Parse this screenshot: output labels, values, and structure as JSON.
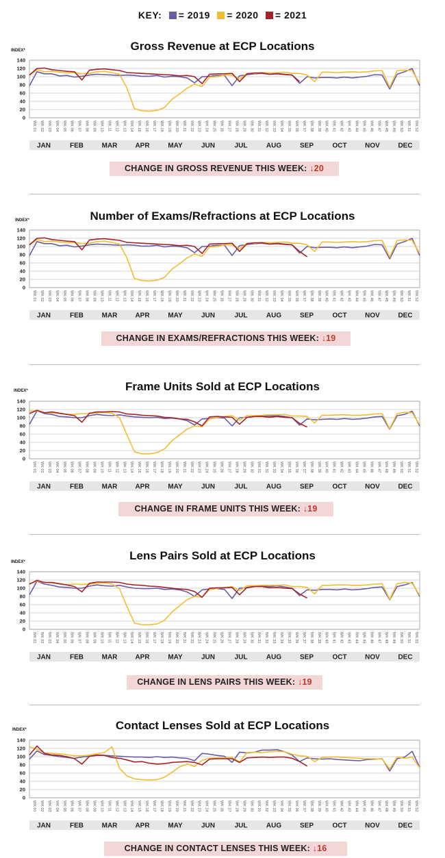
{
  "key": {
    "label": "KEY:",
    "items": [
      {
        "label": "= 2019",
        "color": "#6b5ba5"
      },
      {
        "label": "= 2020",
        "color": "#f2bd33"
      },
      {
        "label": "= 2021",
        "color": "#a3232b"
      }
    ]
  },
  "y_axis_label": "INDEX*",
  "y_ticks": [
    "0",
    "20",
    "40",
    "60",
    "80",
    "100",
    "120",
    "140"
  ],
  "months": [
    "JAN",
    "FEB",
    "MAR",
    "APR",
    "MAY",
    "JUN",
    "JUL",
    "AUG",
    "SEP",
    "OCT",
    "NOV",
    "DEC"
  ],
  "week_labels": [
    "WK 01",
    "WK 02",
    "WK 03",
    "WK 04",
    "WK 05",
    "WK 06",
    "WK 07",
    "WK 08",
    "WK 09",
    "WK 10",
    "WK 11",
    "WK 12",
    "WK 13",
    "WK 14",
    "WK 15",
    "WK 16",
    "WK 17",
    "WK 18",
    "WK 19",
    "WK 20",
    "WK 21",
    "WK 22",
    "WK 23",
    "WK 24",
    "WK 25",
    "WK 26",
    "WK 27",
    "WK 28",
    "WK 29",
    "WK 30",
    "WK 31",
    "WK 32",
    "WK 33",
    "WK 34",
    "WK 35",
    "WK 36",
    "WK 37",
    "WK 38",
    "WK 39",
    "WK 40",
    "WK 41",
    "WK 42",
    "WK 43",
    "WK 44",
    "WK 45",
    "WK 46",
    "WK 47",
    "WK 48",
    "WK 49",
    "WK 50",
    "WK 51",
    "WK 52"
  ],
  "colors": {
    "grid": "#c8c8c8",
    "band": "#e6e6e6",
    "change_bg": "#f3d6d6",
    "arrow": "#c0392b"
  },
  "chart_data": [
    {
      "type": "line",
      "title": "Gross Revenue at ECP Locations",
      "ylim": [
        0,
        140
      ],
      "change": {
        "text": "CHANGE IN GROSS REVENUE THIS WEEK:",
        "value": "↓20"
      },
      "series": [
        {
          "name": "2019",
          "values": [
            78,
            112,
            107,
            107,
            102,
            103,
            99,
            101,
            104,
            106,
            105,
            104,
            103,
            104,
            103,
            101,
            101,
            103,
            99,
            101,
            100,
            97,
            85,
            100,
            101,
            103,
            103,
            78,
            102,
            105,
            107,
            108,
            106,
            108,
            106,
            104,
            84,
            100,
            97,
            98,
            98,
            97,
            99,
            97,
            99,
            101,
            105,
            104,
            70,
            106,
            112,
            120,
            78
          ]
        },
        {
          "name": "2020",
          "values": [
            103,
            117,
            112,
            113,
            111,
            109,
            110,
            107,
            108,
            112,
            113,
            110,
            106,
            72,
            22,
            17,
            16,
            18,
            25,
            45,
            58,
            72,
            82,
            76,
            99,
            100,
            104,
            104,
            94,
            108,
            108,
            110,
            109,
            110,
            111,
            108,
            108,
            104,
            88,
            111,
            111,
            110,
            111,
            112,
            111,
            112,
            114,
            115,
            74,
            115,
            116,
            115,
            83
          ]
        },
        {
          "name": "2021",
          "values": [
            104,
            120,
            121,
            117,
            115,
            113,
            112,
            92,
            116,
            118,
            119,
            117,
            115,
            110,
            109,
            108,
            107,
            106,
            105,
            104,
            102,
            103,
            100,
            83,
            106,
            107,
            107,
            108,
            88,
            107,
            109,
            109,
            106,
            107,
            105,
            104,
            88
          ]
        }
      ]
    },
    {
      "type": "line",
      "title": "Number of Exams/Refractions at ECP Locations",
      "ylim": [
        0,
        140
      ],
      "change": {
        "text": "CHANGE IN EXAMS/REFRACTIONS THIS WEEK:",
        "value": "↓19"
      },
      "series": [
        {
          "name": "2019",
          "values": [
            78,
            112,
            107,
            107,
            102,
            103,
            99,
            101,
            104,
            106,
            105,
            104,
            103,
            104,
            103,
            101,
            101,
            103,
            99,
            101,
            100,
            97,
            85,
            100,
            101,
            103,
            103,
            78,
            102,
            105,
            107,
            108,
            106,
            108,
            106,
            104,
            84,
            100,
            97,
            98,
            98,
            97,
            99,
            97,
            99,
            101,
            105,
            104,
            70,
            106,
            112,
            120,
            78
          ]
        },
        {
          "name": "2020",
          "values": [
            103,
            117,
            112,
            113,
            111,
            109,
            110,
            107,
            108,
            112,
            113,
            110,
            106,
            72,
            22,
            17,
            16,
            18,
            25,
            45,
            58,
            72,
            82,
            76,
            99,
            100,
            104,
            104,
            94,
            108,
            108,
            110,
            109,
            110,
            111,
            108,
            108,
            104,
            88,
            111,
            111,
            110,
            111,
            112,
            111,
            112,
            114,
            115,
            74,
            115,
            116,
            115,
            83
          ]
        },
        {
          "name": "2021",
          "values": [
            104,
            120,
            121,
            117,
            115,
            113,
            112,
            92,
            116,
            118,
            119,
            117,
            115,
            110,
            109,
            108,
            107,
            106,
            105,
            104,
            102,
            103,
            100,
            83,
            106,
            107,
            107,
            108,
            88,
            107,
            109,
            109,
            106,
            107,
            105,
            104,
            88,
            75
          ]
        }
      ]
    },
    {
      "type": "line",
      "title": "Frame Units Sold at ECP Locations",
      "ylim": [
        0,
        140
      ],
      "change": {
        "text": "CHANGE IN FRAME UNITS THIS WEEK:",
        "value": "↓19"
      },
      "series": [
        {
          "name": "2019",
          "values": [
            84,
            117,
            110,
            108,
            103,
            102,
            100,
            100,
            105,
            108,
            106,
            105,
            107,
            104,
            102,
            101,
            100,
            101,
            98,
            99,
            97,
            93,
            82,
            97,
            98,
            100,
            99,
            80,
            100,
            101,
            103,
            105,
            104,
            105,
            103,
            100,
            82,
            97,
            95,
            96,
            97,
            96,
            98,
            96,
            97,
            99,
            102,
            103,
            72,
            105,
            108,
            116,
            80
          ]
        },
        {
          "name": "2020",
          "values": [
            116,
            117,
            112,
            112,
            110,
            108,
            108,
            110,
            110,
            112,
            113,
            111,
            100,
            58,
            17,
            12,
            12,
            15,
            24,
            44,
            58,
            72,
            80,
            78,
            97,
            100,
            103,
            105,
            94,
            105,
            105,
            106,
            107,
            107,
            108,
            104,
            104,
            103,
            87,
            106,
            106,
            107,
            107,
            106,
            106,
            107,
            109,
            110,
            73,
            110,
            113,
            112,
            83
          ]
        },
        {
          "name": "2021",
          "values": [
            110,
            118,
            112,
            114,
            111,
            108,
            105,
            89,
            111,
            114,
            114,
            115,
            114,
            109,
            108,
            106,
            105,
            104,
            101,
            100,
            97,
            96,
            90,
            80,
            102,
            103,
            102,
            101,
            84,
            101,
            103,
            103,
            101,
            103,
            101,
            100,
            86,
            77
          ]
        }
      ]
    },
    {
      "type": "line",
      "title": "Lens Pairs Sold at ECP Locations",
      "ylim": [
        0,
        140
      ],
      "change": {
        "text": "CHANGE IN LENS PAIRS THIS WEEK:",
        "value": "↓19"
      },
      "series": [
        {
          "name": "2019",
          "values": [
            84,
            117,
            110,
            107,
            103,
            102,
            100,
            100,
            105,
            108,
            106,
            105,
            107,
            103,
            100,
            99,
            99,
            100,
            97,
            98,
            96,
            91,
            80,
            96,
            98,
            99,
            97,
            75,
            100,
            101,
            104,
            106,
            104,
            106,
            103,
            100,
            82,
            96,
            95,
            97,
            97,
            96,
            98,
            96,
            97,
            99,
            102,
            103,
            72,
            104,
            108,
            114,
            80
          ]
        },
        {
          "name": "2020",
          "values": [
            111,
            117,
            114,
            113,
            110,
            108,
            110,
            109,
            110,
            112,
            113,
            110,
            99,
            55,
            15,
            11,
            11,
            13,
            22,
            42,
            57,
            72,
            80,
            78,
            97,
            99,
            102,
            104,
            94,
            106,
            106,
            107,
            107,
            107,
            108,
            104,
            104,
            102,
            86,
            107,
            107,
            108,
            108,
            107,
            107,
            108,
            110,
            111,
            73,
            111,
            114,
            112,
            83
          ]
        },
        {
          "name": "2021",
          "values": [
            110,
            119,
            114,
            114,
            111,
            108,
            104,
            91,
            112,
            115,
            115,
            115,
            114,
            110,
            108,
            107,
            105,
            104,
            102,
            100,
            98,
            97,
            92,
            78,
            100,
            101,
            101,
            102,
            84,
            102,
            104,
            104,
            101,
            102,
            100,
            99,
            86,
            76
          ]
        }
      ]
    },
    {
      "type": "line",
      "title": "Contact Lenses Sold at ECP Locations",
      "ylim": [
        0,
        140
      ],
      "change": {
        "text": "CHANGE IN CONTACT LENSES THIS WEEK:",
        "value": "↓16"
      },
      "series": [
        {
          "name": "2019",
          "values": [
            94,
            114,
            105,
            103,
            100,
            98,
            96,
            99,
            101,
            103,
            103,
            102,
            101,
            100,
            99,
            99,
            98,
            100,
            98,
            99,
            97,
            96,
            90,
            108,
            106,
            103,
            101,
            86,
            111,
            109,
            111,
            116,
            116,
            117,
            112,
            104,
            88,
            97,
            95,
            94,
            95,
            93,
            92,
            91,
            90,
            93,
            94,
            95,
            65,
            95,
            99,
            113,
            74
          ]
        },
        {
          "name": "2020",
          "values": [
            124,
            118,
            109,
            108,
            107,
            105,
            102,
            102,
            104,
            107,
            110,
            124,
            72,
            53,
            46,
            44,
            43,
            44,
            50,
            62,
            75,
            82,
            76,
            91,
            96,
            97,
            97,
            98,
            87,
            110,
            111,
            110,
            112,
            113,
            112,
            106,
            102,
            101,
            88,
            98,
            99,
            99,
            98,
            97,
            96,
            95,
            95,
            94,
            70,
            99,
            96,
            99,
            73
          ]
        },
        {
          "name": "2021",
          "values": [
            104,
            126,
            108,
            104,
            103,
            100,
            95,
            82,
            101,
            104,
            103,
            98,
            96,
            92,
            87,
            88,
            84,
            82,
            83,
            86,
            87,
            88,
            86,
            80,
            94,
            95,
            95,
            95,
            86,
            97,
            98,
            99,
            98,
            99,
            99,
            96,
            88,
            77
          ]
        }
      ]
    }
  ]
}
